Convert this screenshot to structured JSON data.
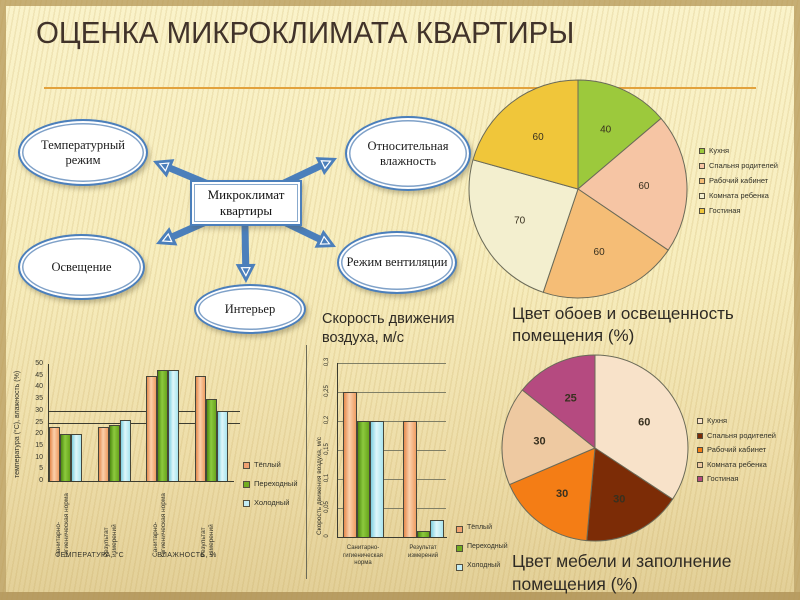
{
  "slide": {
    "title": "ОЦЕНКА МИКРОКЛИМАТА КВАРТИРЫ"
  },
  "diagram": {
    "center": "Микроклимат квартиры",
    "nodes": [
      {
        "label": "Температурный режим"
      },
      {
        "label": "Относительная влажность"
      },
      {
        "label": "Освещение"
      },
      {
        "label": "Режим вентиляции"
      },
      {
        "label": "Интерьер"
      }
    ]
  },
  "chart_data": [
    {
      "id": "temperature-humidity-bars",
      "type": "bar",
      "ylabel": "температура (°С), влажность (%)",
      "ylim": [
        0,
        50
      ],
      "yticks": [
        0,
        5,
        10,
        15,
        20,
        25,
        30,
        35,
        40,
        45,
        50
      ],
      "ref_lines": [
        25,
        30
      ],
      "categories": [
        "Санитарно-гигиеническая норма",
        "Результат измерений",
        "Санитарно-гигиеническая норма",
        "Результат измерений"
      ],
      "group_labels": [
        "ТЕМПЕРАТУРА, °С",
        "ВЛАЖНОСТЬ, %"
      ],
      "legend_position": "right",
      "series": [
        {
          "name": "Тёплый",
          "color": "#f1a170",
          "values": [
            23,
            23,
            45,
            45
          ]
        },
        {
          "name": "Переходный",
          "color": "#72ad21",
          "values": [
            20,
            24,
            47.5,
            35
          ]
        },
        {
          "name": "Холодный",
          "color": "#c3ecf4",
          "values": [
            20,
            26,
            47.5,
            30
          ]
        }
      ]
    },
    {
      "id": "air-speed-bars",
      "type": "bar",
      "title": "Скорость движения воздуха, м/с",
      "ylabel": "Скорость движения воздуха, м/с",
      "ylim": [
        0,
        0.3
      ],
      "ytick_labels": [
        "0",
        "0,05",
        "0,1",
        "0,15",
        "0,2",
        "0,25",
        "0,3"
      ],
      "grid": true,
      "categories": [
        "Санитарно-гигиеническая норма",
        "Результат измерений"
      ],
      "legend_position": "right",
      "series": [
        {
          "name": "Тёплый",
          "color": "#f1a170",
          "values": [
            0.25,
            0.2
          ]
        },
        {
          "name": "Переходный",
          "color": "#72ad21",
          "values": [
            0.2,
            0.01
          ]
        },
        {
          "name": "Холодный",
          "color": "#c3ecf4",
          "values": [
            0.2,
            0.03
          ]
        }
      ]
    },
    {
      "id": "wallpaper-light-pie",
      "type": "pie",
      "caption": "Цвет обоев и освещенность помещения (%)",
      "slices": [
        {
          "label": "Кухня",
          "value": 40,
          "color": "#9cc93c"
        },
        {
          "label": "Спальня родителей",
          "value": 60,
          "color": "#f6c5a4"
        },
        {
          "label": "Рабочий кабинет",
          "value": 60,
          "color": "#f5bd76"
        },
        {
          "label": "Комната ребенка",
          "value": 70,
          "color": "#f3efcf"
        },
        {
          "label": "Гостиная",
          "value": 60,
          "color": "#f0c63a"
        }
      ]
    },
    {
      "id": "furniture-fill-pie",
      "type": "pie",
      "caption": "Цвет мебели и заполнение помещения (%)",
      "slices": [
        {
          "label": "Кухня",
          "value": 60,
          "color": "#f8e2c9"
        },
        {
          "label": "Спальня родителей",
          "value": 30,
          "color": "#7c2c06"
        },
        {
          "label": "Рабочий кабинет",
          "value": 30,
          "color": "#f47d15"
        },
        {
          "label": "Комната ребенка",
          "value": 30,
          "color": "#eec9a1"
        },
        {
          "label": "Гостиная",
          "value": 25,
          "color": "#b54a80"
        }
      ]
    }
  ]
}
